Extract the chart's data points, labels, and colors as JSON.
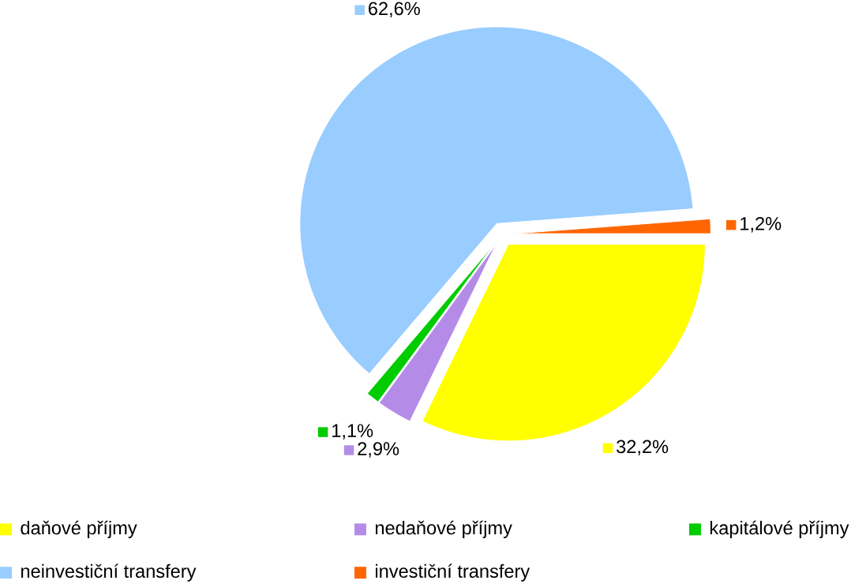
{
  "chart_data": {
    "type": "pie",
    "categories": [
      "daňové příjmy",
      "nedaňové příjmy",
      "kapitálové příjmy",
      "neinvestiční transfery",
      "investiční transfery"
    ],
    "values": [
      32.2,
      2.9,
      1.1,
      62.6,
      1.2
    ],
    "value_labels": [
      "32,2%",
      "2,9%",
      "1,1%",
      "62,6%",
      "1,2%"
    ],
    "colors": [
      "#ffff00",
      "#b48ce8",
      "#00cc00",
      "#99ccff",
      "#ff6600"
    ],
    "legend": "bottom"
  }
}
